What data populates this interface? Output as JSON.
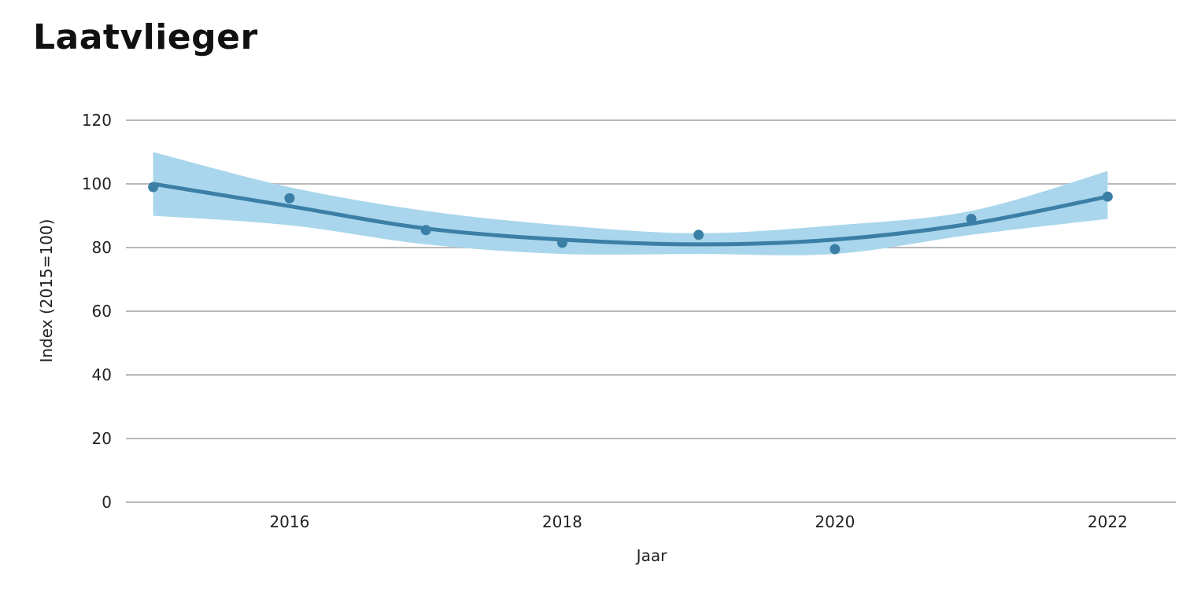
{
  "chart_data": {
    "type": "line",
    "title": "Laatvlieger",
    "xlabel": "Jaar",
    "ylabel": "Index (2015=100)",
    "xlim": [
      2014.8,
      2022.5
    ],
    "ylim": [
      0,
      120
    ],
    "yticks": [
      0,
      20,
      40,
      60,
      80,
      100,
      120
    ],
    "xticks": [
      2016,
      2018,
      2020,
      2022
    ],
    "grid": true,
    "legend": "none",
    "colors": {
      "line": "#3b7fa6",
      "points": "#3b7fa6",
      "band": "#a9d6ec"
    },
    "series": [
      {
        "type": "scatter",
        "x": [
          2015,
          2016,
          2017,
          2018,
          2019,
          2020,
          2021,
          2022
        ],
        "y": [
          99,
          95.5,
          85.5,
          81.5,
          84,
          79.5,
          89,
          96
        ]
      },
      {
        "type": "line",
        "x": [
          2015,
          2016,
          2017,
          2018,
          2019,
          2020,
          2021,
          2022
        ],
        "y": [
          100,
          93,
          86,
          82.5,
          81,
          82.5,
          87.5,
          96
        ]
      },
      {
        "type": "band",
        "x": [
          2015,
          2016,
          2017,
          2018,
          2019,
          2020,
          2021,
          2022
        ],
        "lower": [
          90,
          87,
          81,
          78,
          78,
          78,
          84,
          89
        ],
        "upper": [
          110,
          99,
          91.5,
          87,
          84.5,
          87,
          91.5,
          104
        ]
      }
    ]
  }
}
